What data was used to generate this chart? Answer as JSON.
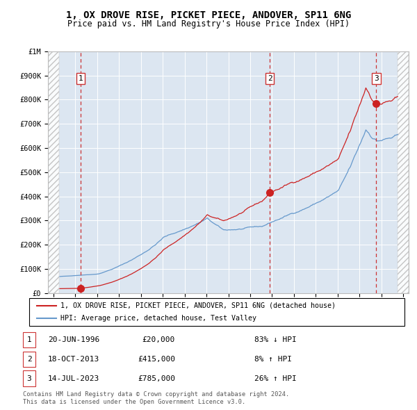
{
  "title1": "1, OX DROVE RISE, PICKET PIECE, ANDOVER, SP11 6NG",
  "title2": "Price paid vs. HM Land Registry's House Price Index (HPI)",
  "background_color": "#dce6f1",
  "hpi_color": "#6699cc",
  "price_color": "#cc2222",
  "vline_color": "#cc3333",
  "sales": [
    {
      "date_num": 1996.47,
      "price": 20000,
      "label": "1"
    },
    {
      "date_num": 2013.8,
      "price": 415000,
      "label": "2"
    },
    {
      "date_num": 2023.54,
      "price": 785000,
      "label": "3"
    }
  ],
  "legend_entries": [
    "1, OX DROVE RISE, PICKET PIECE, ANDOVER, SP11 6NG (detached house)",
    "HPI: Average price, detached house, Test Valley"
  ],
  "table_rows": [
    [
      "1",
      "20-JUN-1996",
      "£20,000",
      "83% ↓ HPI"
    ],
    [
      "2",
      "18-OCT-2013",
      "£415,000",
      "8% ↑ HPI"
    ],
    [
      "3",
      "14-JUL-2023",
      "£785,000",
      "26% ↑ HPI"
    ]
  ],
  "footnote": "Contains HM Land Registry data © Crown copyright and database right 2024.\nThis data is licensed under the Open Government Licence v3.0.",
  "ylim": [
    0,
    1000000
  ],
  "xlim": [
    1993.5,
    2026.5
  ],
  "yticks": [
    0,
    100000,
    200000,
    300000,
    400000,
    500000,
    600000,
    700000,
    800000,
    900000,
    1000000
  ],
  "ytick_labels": [
    "£0",
    "£100K",
    "£200K",
    "£300K",
    "£400K",
    "£500K",
    "£600K",
    "£700K",
    "£800K",
    "£900K",
    "£1M"
  ],
  "xticks": [
    1994,
    1996,
    1998,
    2000,
    2002,
    2004,
    2006,
    2008,
    2010,
    2012,
    2014,
    2016,
    2018,
    2020,
    2022,
    2024,
    2026
  ],
  "hatch_left_end": 1994.5,
  "hatch_right_start": 2025.5
}
